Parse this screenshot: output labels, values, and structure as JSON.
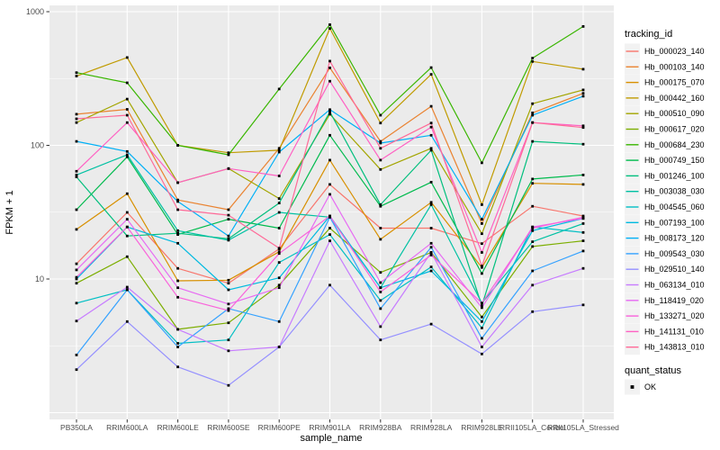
{
  "figure": {
    "bg": "#FFFFFF",
    "panel_bg": "#EBEBEB",
    "grid_color": "#FFFFFF",
    "tick_color": "#333333",
    "tick_label_color": "#4D4D4D",
    "text_color": "#000000",
    "legend_key_bg": "#F2F2F2"
  },
  "chart_data": {
    "type": "line",
    "title": "",
    "xlabel": "sample_name",
    "ylabel": "FPKM + 1",
    "y_scale": "log10",
    "ylim": [
      1,
      1000
    ],
    "y_ticks": [
      10,
      100,
      1000
    ],
    "y_tick_labels": [
      "10",
      "100",
      "1000"
    ],
    "grid": true,
    "legend_position": "right",
    "point_shape": "square",
    "point_color": "#000000",
    "categories": [
      "PB350LA",
      "RRIM600LA",
      "RRIM600LE",
      "RRIM600SE",
      "RRIM600PE",
      "RRIM901LA",
      "RRIM928BA",
      "RRIM928LA",
      "RRIM928LE",
      "RRII105LA_Control",
      "RRII105LA_Stressed"
    ],
    "legend": {
      "title": "tracking_id"
    },
    "legend2": {
      "title": "quant_status",
      "items": [
        {
          "label": "OK",
          "marker": "black-square"
        }
      ]
    },
    "series": [
      {
        "name": "Hb_000023_140",
        "color": "#F8766D",
        "values": [
          13,
          31.5,
          12,
          9.3,
          16.8,
          51,
          24,
          24,
          18.4,
          35,
          29.6
        ]
      },
      {
        "name": "Hb_000103_140",
        "color": "#EA8331",
        "values": [
          171,
          186,
          39,
          33,
          95,
          380,
          107,
          196,
          26,
          175,
          245
        ]
      },
      {
        "name": "Hb_000175_070",
        "color": "#D89000",
        "values": [
          23.5,
          43.5,
          9.7,
          9.8,
          16,
          77.5,
          19.8,
          37.5,
          12.2,
          52,
          51
        ]
      },
      {
        "name": "Hb_000442_160",
        "color": "#C09B00",
        "values": [
          330,
          454,
          100,
          88,
          92,
          750,
          147,
          340,
          36,
          424,
          371
        ]
      },
      {
        "name": "Hb_000510_090",
        "color": "#A3A500",
        "values": [
          148,
          222,
          52.6,
          67,
          40,
          171,
          66,
          95,
          21.8,
          205,
          260
        ]
      },
      {
        "name": "Hb_000617_020",
        "color": "#7CAE00",
        "values": [
          9.3,
          14.7,
          4.2,
          4.7,
          9.0,
          24,
          11.2,
          15.8,
          5.2,
          17.5,
          19.3
        ]
      },
      {
        "name": "Hb_000684_230",
        "color": "#39B600",
        "values": [
          350,
          294,
          100,
          85,
          264,
          800,
          168,
          382,
          74,
          449,
          775
        ]
      },
      {
        "name": "Hb_000749_150",
        "color": "#00BB4E",
        "values": [
          33,
          82,
          21.5,
          28,
          24,
          119,
          35,
          53,
          11,
          56,
          60
        ]
      },
      {
        "name": "Hb_001246_100",
        "color": "#00BF7D",
        "values": [
          58,
          21,
          22,
          20,
          37,
          178,
          36,
          92,
          6.3,
          107,
          102
        ]
      },
      {
        "name": "Hb_003038_030",
        "color": "#00C1A3",
        "values": [
          60,
          85,
          23,
          19.5,
          31.5,
          29,
          8.6,
          36,
          6.6,
          19,
          26
        ]
      },
      {
        "name": "Hb_004545_060",
        "color": "#00BFC4",
        "values": [
          6.6,
          8.3,
          3.3,
          3.5,
          13.3,
          21.5,
          6.9,
          12.3,
          4.3,
          24.5,
          22.3
        ]
      },
      {
        "name": "Hb_007193_100",
        "color": "#00BAE0",
        "values": [
          10,
          24.5,
          18.5,
          8.3,
          10.2,
          29.6,
          8.6,
          11.5,
          4.8,
          23,
          28.4
        ]
      },
      {
        "name": "Hb_008173_120",
        "color": "#00B0F6",
        "values": [
          107,
          90,
          38,
          21,
          89,
          185,
          104,
          119,
          28,
          168,
          233
        ]
      },
      {
        "name": "Hb_009543_030",
        "color": "#35A2FF",
        "values": [
          2.7,
          8.3,
          3.1,
          6.0,
          4.8,
          29,
          6.0,
          17.3,
          3.6,
          11.5,
          16.2
        ]
      },
      {
        "name": "Hb_029510_140",
        "color": "#9590FF",
        "values": [
          2.1,
          4.8,
          2.2,
          1.6,
          3.1,
          9.0,
          3.5,
          4.6,
          2.75,
          5.7,
          6.4
        ]
      },
      {
        "name": "Hb_063134_010",
        "color": "#C77CFF",
        "values": [
          4.85,
          8.7,
          4.2,
          2.9,
          3.1,
          19.3,
          4.4,
          15.8,
          3.1,
          9.0,
          12
        ]
      },
      {
        "name": "Hb_118419_020",
        "color": "#E76BF3",
        "values": [
          11.7,
          28,
          8.6,
          6.5,
          8.6,
          43,
          9.4,
          18.5,
          6.1,
          24.5,
          28.4
        ]
      },
      {
        "name": "Hb_133271_020",
        "color": "#FA62DB",
        "values": [
          10.3,
          24.5,
          7.3,
          5.8,
          15.5,
          29.6,
          8.0,
          15.1,
          6.6,
          24,
          29
        ]
      },
      {
        "name": "Hb_141131_010",
        "color": "#FF61C3",
        "values": [
          64,
          148,
          52.6,
          67,
          59,
          302,
          77.5,
          137,
          15.8,
          148,
          140
        ]
      },
      {
        "name": "Hb_143813_010",
        "color": "#FF6A98",
        "values": [
          158,
          168,
          33,
          30,
          17,
          427,
          95,
          147,
          12.5,
          148,
          136
        ]
      }
    ]
  }
}
